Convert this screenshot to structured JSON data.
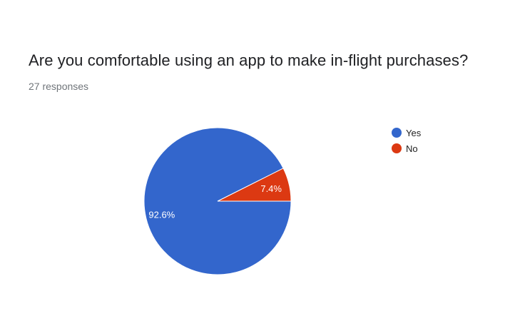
{
  "title": "Are you comfortable using an app to make in-flight purchases?",
  "subtitle": "27 responses",
  "chart_data": {
    "type": "pie",
    "title": "",
    "legend_position": "right",
    "slices": [
      {
        "label": "Yes",
        "value": 92.6,
        "display": "92.6%",
        "color": "#3366cc"
      },
      {
        "label": "No",
        "value": 7.4,
        "display": "7.4%",
        "color": "#dc3912"
      }
    ]
  }
}
